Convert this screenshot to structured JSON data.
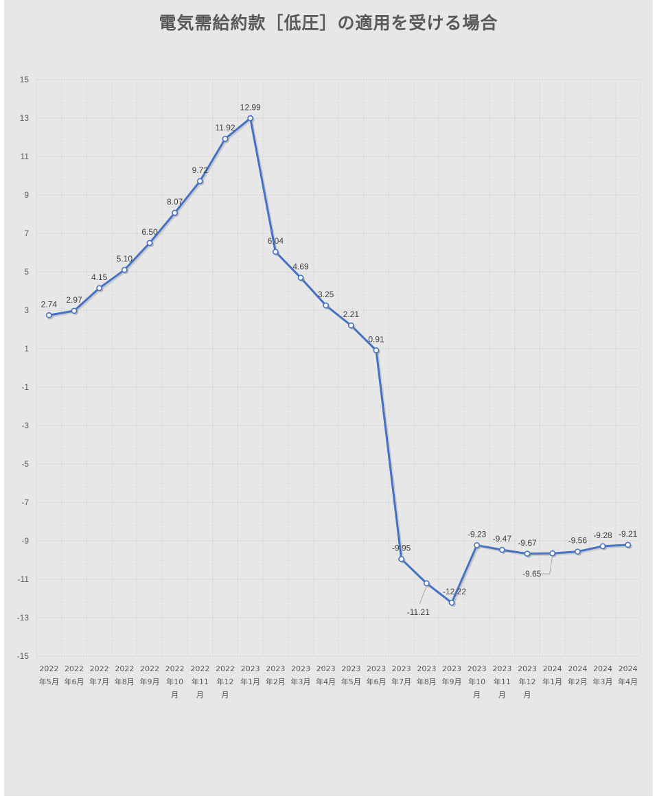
{
  "chart_data": {
    "type": "line",
    "title": "電気需給約款［低圧］の適用を受ける場合",
    "xlabel": "",
    "ylabel": "",
    "ylim": [
      -15,
      15
    ],
    "yticks": [
      15,
      13,
      11,
      9,
      7,
      5,
      3,
      1,
      -1,
      -3,
      -5,
      -7,
      -9,
      -11,
      -13,
      -15
    ],
    "grid": true,
    "legend": "none",
    "categories": [
      "2022年5月",
      "2022年6月",
      "2022年7月",
      "2022年8月",
      "2022年9月",
      "2022年10月",
      "2022年11月",
      "2022年12月",
      "2023年1月",
      "2023年2月",
      "2023年3月",
      "2023年4月",
      "2023年5月",
      "2023年6月",
      "2023年7月",
      "2023年8月",
      "2023年9月",
      "2023年10月",
      "2023年11月",
      "2023年12月",
      "2024年1月",
      "2024年2月",
      "2024年3月",
      "2024年4月"
    ],
    "category_lines": [
      [
        "2022",
        "年5月"
      ],
      [
        "2022",
        "年6月"
      ],
      [
        "2022",
        "年7月"
      ],
      [
        "2022",
        "年8月"
      ],
      [
        "2022",
        "年9月"
      ],
      [
        "2022",
        "年10",
        "月"
      ],
      [
        "2022",
        "年11",
        "月"
      ],
      [
        "2022",
        "年12",
        "月"
      ],
      [
        "2023",
        "年1月"
      ],
      [
        "2023",
        "年2月"
      ],
      [
        "2023",
        "年3月"
      ],
      [
        "2023",
        "年4月"
      ],
      [
        "2023",
        "年5月"
      ],
      [
        "2023",
        "年6月"
      ],
      [
        "2023",
        "年7月"
      ],
      [
        "2023",
        "年8月"
      ],
      [
        "2023",
        "年9月"
      ],
      [
        "2023",
        "年10",
        "月"
      ],
      [
        "2023",
        "年11",
        "月"
      ],
      [
        "2023",
        "年12",
        "月"
      ],
      [
        "2024",
        "年1月"
      ],
      [
        "2024",
        "年2月"
      ],
      [
        "2024",
        "年3月"
      ],
      [
        "2024",
        "年4月"
      ]
    ],
    "series": [
      {
        "values": [
          2.74,
          2.97,
          4.15,
          5.1,
          6.5,
          8.07,
          9.72,
          11.92,
          12.99,
          6.04,
          4.69,
          3.25,
          2.21,
          0.91,
          -9.95,
          -11.21,
          -12.22,
          -9.23,
          -9.47,
          -9.67,
          -9.65,
          -9.56,
          -9.28,
          -9.21
        ],
        "labels": [
          "2.74",
          "2.97",
          "4.15",
          "5.10",
          "6.50",
          "8.07",
          "9.72",
          "11.92",
          "12.99",
          "6.04",
          "4.69",
          "3.25",
          "2.21",
          "0.91",
          "-9.95",
          "-11.21",
          "-12.22",
          "-9.23",
          "-9.47",
          "-9.67",
          "-9.65",
          "-9.56",
          "-9.28",
          "-9.21"
        ],
        "color": "#4472c4"
      }
    ]
  }
}
